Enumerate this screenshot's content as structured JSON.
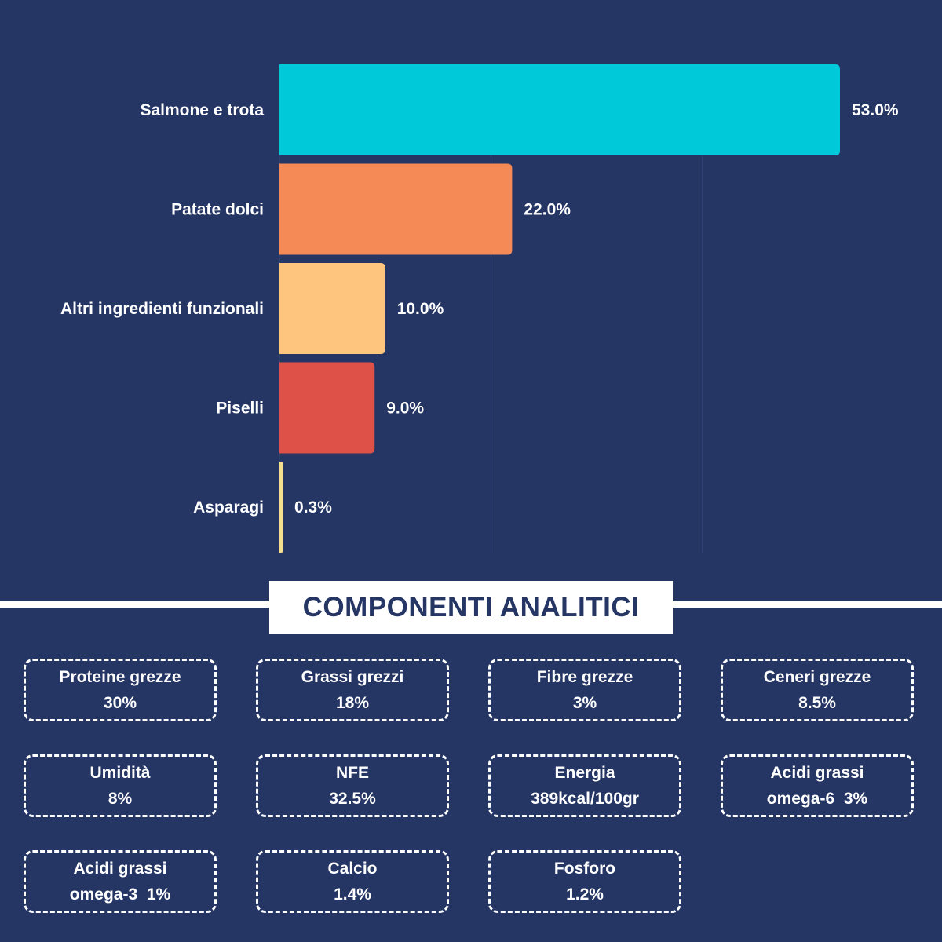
{
  "chart_data": {
    "type": "bar",
    "orientation": "horizontal",
    "categories": [
      "Salmone e trota",
      "Patate dolci",
      "Altri ingredienti funzionali",
      "Piselli",
      "Asparagi"
    ],
    "values": [
      53.0,
      22.0,
      10.0,
      9.0,
      0.3
    ],
    "value_labels": [
      "53.0%",
      "22.0%",
      "10.0%",
      "9.0%",
      "0.3%"
    ],
    "colors": [
      "#00C9DA",
      "#F58A57",
      "#FDC57D",
      "#DD5149",
      "#F2DE8C"
    ],
    "xlim": [
      0,
      60
    ],
    "gridlines": [
      20,
      40
    ],
    "grid": true,
    "title": "",
    "xlabel": "",
    "ylabel": ""
  },
  "section": {
    "title": "COMPONENTI ANALITICI"
  },
  "components": [
    {
      "label": "Proteine grezze",
      "value": "30%"
    },
    {
      "label": "Grassi grezzi",
      "value": "18%"
    },
    {
      "label": "Fibre grezze",
      "value": "3%"
    },
    {
      "label": "Ceneri grezze",
      "value": "8.5%"
    },
    {
      "label": "Umidità",
      "value": "8%"
    },
    {
      "label": "NFE",
      "value": "32.5%"
    },
    {
      "label": "Energia",
      "value": "389kcal/100gr"
    },
    {
      "label": "Acidi grassi",
      "value": "omega-6  3%"
    },
    {
      "label": "Acidi grassi",
      "value": "omega-3  1%"
    },
    {
      "label": "Calcio",
      "value": "1.4%"
    },
    {
      "label": "Fosforo",
      "value": "1.2%"
    }
  ],
  "colors": {
    "background": "#253665",
    "card_border": "#FFFFFF",
    "title_text": "#253665"
  }
}
